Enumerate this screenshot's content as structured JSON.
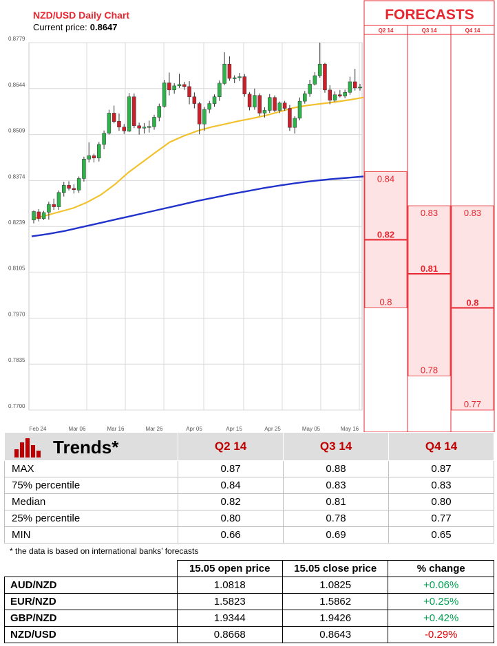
{
  "colors": {
    "bull": "#2db34a",
    "bear": "#cc1f2a",
    "ma_short": "#f2c12e",
    "ma_long": "#2233cc",
    "forecast_red": "#e8262f",
    "forecast_fill": "#fde3e3"
  },
  "chart_data": [
    {
      "type": "candlestick",
      "title": "NZD/USD Daily Chart",
      "subtitle_label": "Current price:",
      "current_price": "0.8647",
      "y_ticks": [
        "0.8779",
        "0.8644",
        "0.8509",
        "0.8374",
        "0.8239",
        "0.8105",
        "0.7970",
        "0.7835",
        "0.7700"
      ],
      "x_ticks": [
        "Feb 24",
        "Mar 06",
        "Mar 16",
        "Mar 26",
        "Apr 05",
        "Apr 15",
        "Apr 25",
        "May 05",
        "May 16"
      ],
      "ylim": [
        0.77,
        0.8779
      ],
      "grid": true,
      "ohlc": [
        [
          0.8258,
          0.8286,
          0.8248,
          0.8283
        ],
        [
          0.8282,
          0.829,
          0.8254,
          0.8262
        ],
        [
          0.8262,
          0.8285,
          0.8258,
          0.828
        ],
        [
          0.8281,
          0.8312,
          0.8259,
          0.8304
        ],
        [
          0.8304,
          0.8321,
          0.8288,
          0.8297
        ],
        [
          0.8297,
          0.8345,
          0.8288,
          0.8339
        ],
        [
          0.8339,
          0.837,
          0.8327,
          0.836
        ],
        [
          0.836,
          0.8372,
          0.8345,
          0.8351
        ],
        [
          0.8351,
          0.8363,
          0.8336,
          0.8347
        ],
        [
          0.8346,
          0.8386,
          0.8338,
          0.838
        ],
        [
          0.838,
          0.8444,
          0.8371,
          0.8437
        ],
        [
          0.8437,
          0.8486,
          0.8427,
          0.8447
        ],
        [
          0.8447,
          0.8453,
          0.8427,
          0.844
        ],
        [
          0.844,
          0.8487,
          0.843,
          0.848
        ],
        [
          0.848,
          0.8521,
          0.8466,
          0.8513
        ],
        [
          0.8513,
          0.8582,
          0.8509,
          0.8572
        ],
        [
          0.8572,
          0.8594,
          0.8542,
          0.8547
        ],
        [
          0.8548,
          0.8571,
          0.852,
          0.8531
        ],
        [
          0.8531,
          0.854,
          0.8511,
          0.852
        ],
        [
          0.8519,
          0.8631,
          0.8516,
          0.862
        ],
        [
          0.862,
          0.863,
          0.8528,
          0.8535
        ],
        [
          0.8535,
          0.8544,
          0.8509,
          0.8528
        ],
        [
          0.8528,
          0.8543,
          0.8512,
          0.8531
        ],
        [
          0.8531,
          0.855,
          0.8515,
          0.8533
        ],
        [
          0.8532,
          0.8567,
          0.8523,
          0.856
        ],
        [
          0.856,
          0.86,
          0.8548,
          0.8592
        ],
        [
          0.8592,
          0.867,
          0.8588,
          0.8661
        ],
        [
          0.8661,
          0.8691,
          0.8624,
          0.864
        ],
        [
          0.864,
          0.866,
          0.8629,
          0.8652
        ],
        [
          0.8652,
          0.8688,
          0.8646,
          0.8656
        ],
        [
          0.8656,
          0.8664,
          0.864,
          0.865
        ],
        [
          0.865,
          0.8666,
          0.8598,
          0.862
        ],
        [
          0.862,
          0.8633,
          0.8586,
          0.86
        ],
        [
          0.86,
          0.8605,
          0.851,
          0.854
        ],
        [
          0.854,
          0.859,
          0.852,
          0.8583
        ],
        [
          0.8583,
          0.8608,
          0.8572,
          0.86
        ],
        [
          0.86,
          0.8627,
          0.8591,
          0.862
        ],
        [
          0.862,
          0.8668,
          0.8608,
          0.866
        ],
        [
          0.8659,
          0.8751,
          0.8654,
          0.8716
        ],
        [
          0.8716,
          0.8739,
          0.8667,
          0.8674
        ],
        [
          0.8674,
          0.8683,
          0.866,
          0.8676
        ],
        [
          0.8677,
          0.869,
          0.8666,
          0.8679
        ],
        [
          0.8679,
          0.8687,
          0.862,
          0.8628
        ],
        [
          0.8628,
          0.8634,
          0.858,
          0.859
        ],
        [
          0.859,
          0.8644,
          0.8582,
          0.8624
        ],
        [
          0.8624,
          0.863,
          0.8563,
          0.8572
        ],
        [
          0.8572,
          0.8589,
          0.8559,
          0.858
        ],
        [
          0.858,
          0.8628,
          0.8573,
          0.8618
        ],
        [
          0.8618,
          0.8624,
          0.8575,
          0.858
        ],
        [
          0.858,
          0.8606,
          0.8572,
          0.8602
        ],
        [
          0.8602,
          0.8608,
          0.8579,
          0.8586
        ],
        [
          0.8586,
          0.8596,
          0.852,
          0.853
        ],
        [
          0.853,
          0.8563,
          0.8512,
          0.8557
        ],
        [
          0.8557,
          0.8618,
          0.8551,
          0.8607
        ],
        [
          0.8607,
          0.8637,
          0.86,
          0.8629
        ],
        [
          0.8629,
          0.867,
          0.862,
          0.8657
        ],
        [
          0.8657,
          0.8692,
          0.8653,
          0.8682
        ],
        [
          0.8682,
          0.8779,
          0.8676,
          0.8716
        ],
        [
          0.8716,
          0.872,
          0.8632,
          0.864
        ],
        [
          0.864,
          0.8654,
          0.8598,
          0.861
        ],
        [
          0.861,
          0.8636,
          0.8605,
          0.8626
        ],
        [
          0.8626,
          0.864,
          0.8618,
          0.8622
        ],
        [
          0.8622,
          0.8641,
          0.8616,
          0.8633
        ],
        [
          0.8633,
          0.8679,
          0.8626,
          0.8664
        ],
        [
          0.8664,
          0.8702,
          0.8638,
          0.8646
        ],
        [
          0.8646,
          0.8658,
          0.8638,
          0.8649
        ]
      ],
      "ma_short": [
        0.8262,
        0.8271,
        0.8282,
        0.8293,
        0.831,
        0.8332,
        0.8362,
        0.8398,
        0.8428,
        0.8458,
        0.8487,
        0.8505,
        0.852,
        0.8531,
        0.854,
        0.8549,
        0.8557,
        0.8566,
        0.8577,
        0.8588,
        0.8595,
        0.86,
        0.8605,
        0.8611,
        0.8618
      ],
      "ma_long": [
        0.821,
        0.8217,
        0.8226,
        0.8237,
        0.8248,
        0.8259,
        0.827,
        0.8281,
        0.8292,
        0.8303,
        0.8314,
        0.8324,
        0.8334,
        0.8343,
        0.8352,
        0.836,
        0.8367,
        0.8373,
        0.8378,
        0.8382,
        0.8386
      ]
    },
    {
      "type": "range_bars",
      "title": "FORECASTS",
      "categories": [
        "Q2 14",
        "Q3 14",
        "Q4 14"
      ],
      "high": [
        0.84,
        0.83,
        0.83
      ],
      "median": [
        0.82,
        0.81,
        0.8
      ],
      "low": [
        0.8,
        0.78,
        0.77
      ],
      "high_labels": [
        "0.84",
        "0.83",
        "0.83"
      ],
      "median_labels": [
        "0.82",
        "0.81",
        "0.8"
      ],
      "low_labels": [
        "0.8",
        "0.78",
        "0.77"
      ]
    }
  ],
  "trends": {
    "title": "Trends*",
    "columns": [
      "Q2 14",
      "Q3 14",
      "Q4 14"
    ],
    "rows": [
      {
        "label": "MAX",
        "values": [
          "0.87",
          "0.88",
          "0.87"
        ]
      },
      {
        "label": "75% percentile",
        "values": [
          "0.84",
          "0.83",
          "0.83"
        ]
      },
      {
        "label": "Median",
        "values": [
          "0.82",
          "0.81",
          "0.80"
        ]
      },
      {
        "label": "25% percentile",
        "values": [
          "0.80",
          "0.78",
          "0.77"
        ]
      },
      {
        "label": "MIN",
        "values": [
          "0.66",
          "0.69",
          "0.65"
        ]
      }
    ],
    "footnote": "* the data is based on international banks’ forecasts"
  },
  "prices": {
    "columns": [
      "15.05 open price",
      "15.05 close price",
      "% change"
    ],
    "rows": [
      {
        "pair": "AUD/NZD",
        "open": "1.0818",
        "close": "1.0825",
        "change": "+0.06%",
        "direction": "up"
      },
      {
        "pair": "EUR/NZD",
        "open": "1.5823",
        "close": "1.5862",
        "change": "+0.25%",
        "direction": "up"
      },
      {
        "pair": "GBP/NZD",
        "open": "1.9344",
        "close": "1.9426",
        "change": "+0.42%",
        "direction": "up"
      },
      {
        "pair": "NZD/USD",
        "open": "0.8668",
        "close": "0.8643",
        "change": "-0.29%",
        "direction": "down"
      }
    ]
  }
}
